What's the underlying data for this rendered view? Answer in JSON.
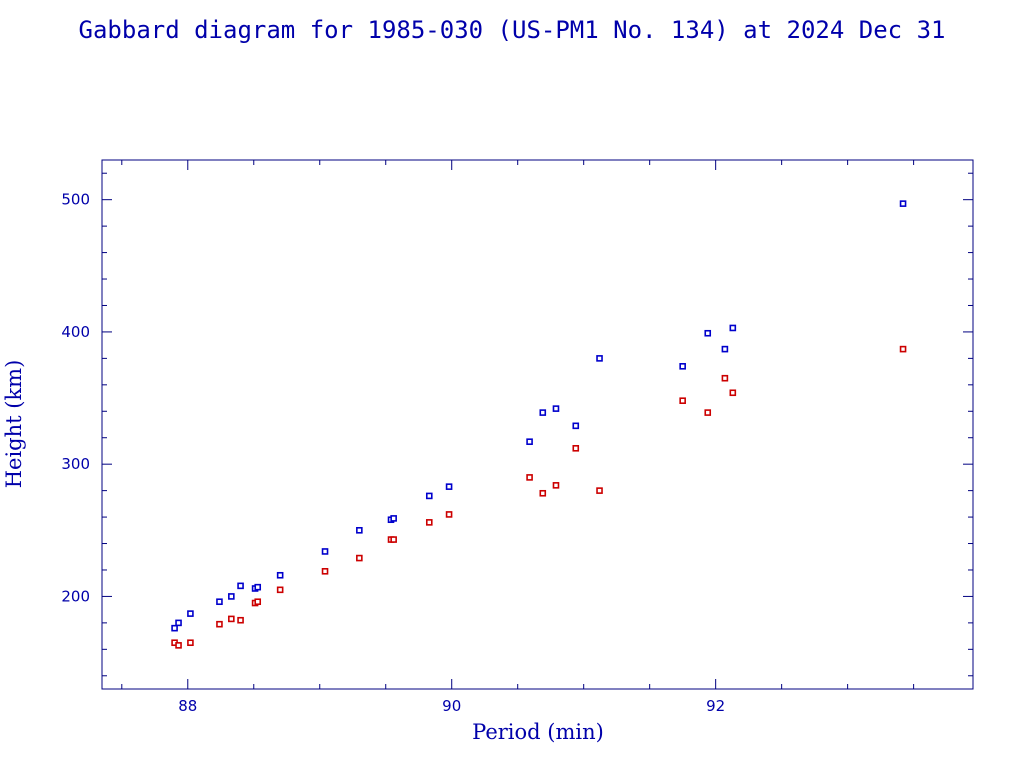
{
  "chart_data": {
    "type": "scatter",
    "title": "Gabbard diagram for 1985-030 (US-PM1 No. 134) at 2024 Dec 31",
    "xlabel": "Period (min)",
    "ylabel": "Height (km)",
    "xlim": [
      87.35,
      93.95
    ],
    "ylim": [
      130,
      530
    ],
    "x_major_ticks": [
      88,
      90,
      92
    ],
    "x_minor_step": 0.5,
    "y_major_ticks": [
      200,
      300,
      400,
      500
    ],
    "y_minor_step": 20,
    "grid": false,
    "legend": "none",
    "series": [
      {
        "color": "#0000cc",
        "points": [
          [
            87.9,
            176
          ],
          [
            87.93,
            180
          ],
          [
            88.02,
            187
          ],
          [
            88.24,
            196
          ],
          [
            88.33,
            200
          ],
          [
            88.4,
            208
          ],
          [
            88.51,
            206
          ],
          [
            88.53,
            207
          ],
          [
            88.7,
            216
          ],
          [
            89.04,
            234
          ],
          [
            89.3,
            250
          ],
          [
            89.54,
            258
          ],
          [
            89.56,
            259
          ],
          [
            89.83,
            276
          ],
          [
            89.98,
            283
          ],
          [
            90.59,
            317
          ],
          [
            90.69,
            339
          ],
          [
            90.79,
            342
          ],
          [
            90.94,
            329
          ],
          [
            91.12,
            380
          ],
          [
            91.75,
            374
          ],
          [
            91.94,
            399
          ],
          [
            92.07,
            387
          ],
          [
            92.13,
            403
          ],
          [
            93.42,
            497
          ]
        ]
      },
      {
        "color": "#cc0000",
        "points": [
          [
            87.9,
            165
          ],
          [
            87.93,
            163
          ],
          [
            88.02,
            165
          ],
          [
            88.24,
            179
          ],
          [
            88.33,
            183
          ],
          [
            88.4,
            182
          ],
          [
            88.51,
            195
          ],
          [
            88.53,
            196
          ],
          [
            88.7,
            205
          ],
          [
            89.04,
            219
          ],
          [
            89.3,
            229
          ],
          [
            89.54,
            243
          ],
          [
            89.56,
            243
          ],
          [
            89.83,
            256
          ],
          [
            89.98,
            262
          ],
          [
            90.59,
            290
          ],
          [
            90.69,
            278
          ],
          [
            90.79,
            284
          ],
          [
            90.94,
            312
          ],
          [
            91.12,
            280
          ],
          [
            91.75,
            348
          ],
          [
            91.94,
            339
          ],
          [
            92.07,
            365
          ],
          [
            92.13,
            354
          ],
          [
            93.42,
            387
          ]
        ]
      }
    ]
  }
}
